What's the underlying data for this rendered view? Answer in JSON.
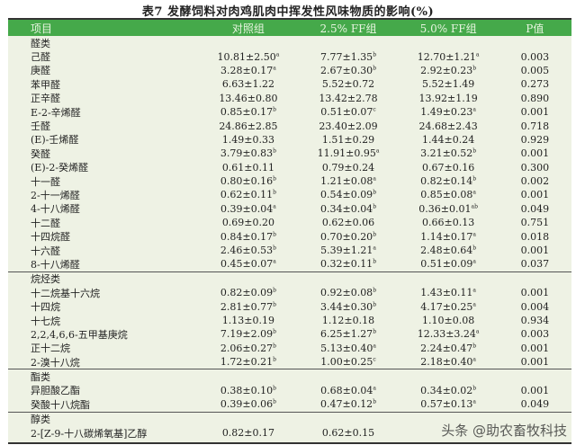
{
  "title": "表7   发酵饲料对肉鸡肌肉中挥发性风味物质的影响(%)",
  "header": [
    "项目",
    "对照组",
    "2.5% FF组",
    "5.0% FF组",
    "P值"
  ],
  "sections": [
    {
      "name": "醛类",
      "rows": [
        [
          "己醛",
          "10.81±2.50",
          "a",
          "7.77±1.35",
          "b",
          "12.70±1.21",
          "a",
          "0.003"
        ],
        [
          "庚醛",
          "3.28±0.17",
          "a",
          "2.67±0.30",
          "b",
          "2.92±0.23",
          "b",
          "0.005"
        ],
        [
          "苯甲醛",
          "6.63±1.22",
          "",
          "5.52±0.72",
          "",
          "5.52±1.49",
          "",
          "0.273"
        ],
        [
          "正辛醛",
          "13.46±0.80",
          "",
          "13.42±2.78",
          "",
          "13.92±1.19",
          "",
          "0.890"
        ],
        [
          "E-2-辛烯醛",
          "0.85±0.17",
          "b",
          "0.51±0.07",
          "c",
          "1.49±0.23",
          "a",
          "0.001"
        ],
        [
          "壬醛",
          "24.86±2.85",
          "",
          "23.40±2.09",
          "",
          "24.68±2.43",
          "",
          "0.718"
        ],
        [
          "(E)-壬烯醛",
          "1.49±0.33",
          "",
          "1.51±0.29",
          "",
          "1.44±0.24",
          "",
          "0.929"
        ],
        [
          "癸醛",
          "3.79±0.83",
          "b",
          "11.91±0.95",
          "a",
          "3.21±0.52",
          "b",
          "0.001"
        ],
        [
          "(E)-2-癸烯醛",
          "0.61±0.11",
          "",
          "0.79±0.24",
          "",
          "0.67±0.16",
          "",
          "0.300"
        ],
        [
          "十一醛",
          "0.80±0.16",
          "b",
          "1.21±0.08",
          "a",
          "0.82±0.14",
          "b",
          "0.002"
        ],
        [
          "2-十一烯醛",
          "0.62±0.11",
          "b",
          "0.54±0.09",
          "b",
          "0.85±0.08",
          "a",
          "0.001"
        ],
        [
          "4-十八烯醛",
          "0.39±0.04",
          "a",
          "0.34±0.04",
          "b",
          "0.36±0.01",
          "ab",
          "0.049"
        ],
        [
          "十二醛",
          "0.69±0.20",
          "",
          "0.62±0.06",
          "",
          "0.66±0.13",
          "",
          "0.751"
        ],
        [
          "十四烷醛",
          "0.84±0.17",
          "b",
          "0.70±0.20",
          "b",
          "1.14±0.17",
          "a",
          "0.018"
        ],
        [
          "十六醛",
          "2.46±0.53",
          "b",
          "5.39±1.21",
          "a",
          "2.48±0.64",
          "b",
          "0.001"
        ],
        [
          "8-十八烯醛",
          "0.45±0.07",
          "a",
          "0.32±0.11",
          "b",
          "0.51±0.09",
          "a",
          "0.037"
        ]
      ]
    },
    {
      "name": "烷烃类",
      "rows": [
        [
          "十二烷基十六烷",
          "0.82±0.09",
          "b",
          "0.92±0.08",
          "b",
          "1.43±0.11",
          "a",
          "0.001"
        ],
        [
          "十四烷",
          "2.81±0.77",
          "b",
          "3.44±0.30",
          "b",
          "4.17±0.25",
          "a",
          "0.004"
        ],
        [
          "十七烷",
          "1.13±0.19",
          "",
          "1.12±0.18",
          "",
          "1.10±0.08",
          "",
          "0.934"
        ],
        [
          "2,2,4,6,6-五甲基庚烷",
          "7.19±2.09",
          "b",
          "6.25±1.27",
          "b",
          "12.33±3.24",
          "a",
          "0.003"
        ],
        [
          "正十二烷",
          "2.06±0.27",
          "b",
          "5.13±0.40",
          "a",
          "2.24±0.47",
          "b",
          "0.001"
        ],
        [
          "2-溴十八烷",
          "1.72±0.21",
          "b",
          "1.00±0.25",
          "c",
          "2.18±0.40",
          "a",
          "0.001"
        ]
      ]
    },
    {
      "name": "酯类",
      "rows": [
        [
          "异胆酸乙酯",
          "0.38±0.10",
          "b",
          "0.68±0.04",
          "a",
          "0.34±0.02",
          "b",
          "0.001"
        ],
        [
          "癸酸十八烷酯",
          "0.39±0.06",
          "b",
          "0.47±0.12",
          "b",
          "0.57±0.13",
          "a",
          "0.049"
        ]
      ]
    },
    {
      "name": "醇类",
      "rows": [
        [
          "2-[Z-9-十八碳烯氧基]乙醇",
          "0.82±0.17",
          "",
          "0.62±0.15",
          "",
          "",
          "",
          ""
        ]
      ]
    }
  ],
  "watermark": "头条 @助农畜牧科技",
  "colors": {
    "header_bg": "#45a94a",
    "table_bg": "#eef2e4"
  }
}
